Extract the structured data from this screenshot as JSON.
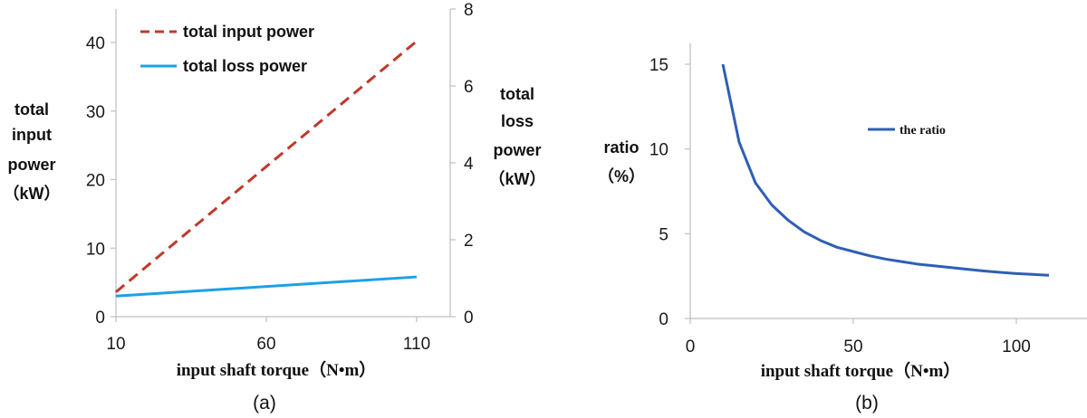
{
  "chart_data": [
    {
      "type": "line",
      "panel_label": "(a)",
      "xlabel": "input shaft torque（N•m）",
      "ylabel_left": [
        "total",
        "input",
        "power",
        "（kW）"
      ],
      "ylabel_right": [
        "total",
        "loss",
        "power",
        "（kW）"
      ],
      "xlim": [
        10,
        110
      ],
      "ylim_left": [
        0,
        45
      ],
      "ylim_right": [
        0,
        8
      ],
      "x_ticks": [
        "10",
        "60",
        "110"
      ],
      "y_left_ticks": [
        "0",
        "10",
        "20",
        "30",
        "40"
      ],
      "y_right_ticks": [
        "0",
        "2",
        "4",
        "6",
        "8"
      ],
      "legend_position": "top-left",
      "series": [
        {
          "name": "total input power",
          "axis": "left",
          "style": "dashed",
          "color": "#c0392b",
          "x": [
            10,
            110
          ],
          "y": [
            3.6,
            40.2
          ]
        },
        {
          "name": "total loss power",
          "axis": "left",
          "style": "solid",
          "color": "#1ea0e6",
          "x": [
            10,
            110
          ],
          "y": [
            3.0,
            5.8
          ]
        }
      ]
    },
    {
      "type": "line",
      "panel_label": "(b)",
      "xlabel": "input shaft torque（N•m）",
      "ylabel": [
        "ratio",
        "（%）"
      ],
      "xlim": [
        0,
        115
      ],
      "ylim": [
        0,
        16
      ],
      "x_ticks": [
        "0",
        "50",
        "100"
      ],
      "y_ticks": [
        "0",
        "5",
        "10",
        "15"
      ],
      "legend_position": "center-right",
      "series": [
        {
          "name": "the ratio",
          "color": "#2e5fb5",
          "x": [
            10,
            15,
            20,
            25,
            30,
            35,
            40,
            45,
            50,
            55,
            60,
            65,
            70,
            75,
            80,
            85,
            90,
            95,
            100,
            105,
            110
          ],
          "y": [
            15.0,
            10.4,
            8.0,
            6.7,
            5.8,
            5.1,
            4.6,
            4.2,
            3.95,
            3.7,
            3.5,
            3.35,
            3.2,
            3.1,
            3.0,
            2.9,
            2.8,
            2.72,
            2.65,
            2.6,
            2.55
          ]
        }
      ]
    }
  ]
}
